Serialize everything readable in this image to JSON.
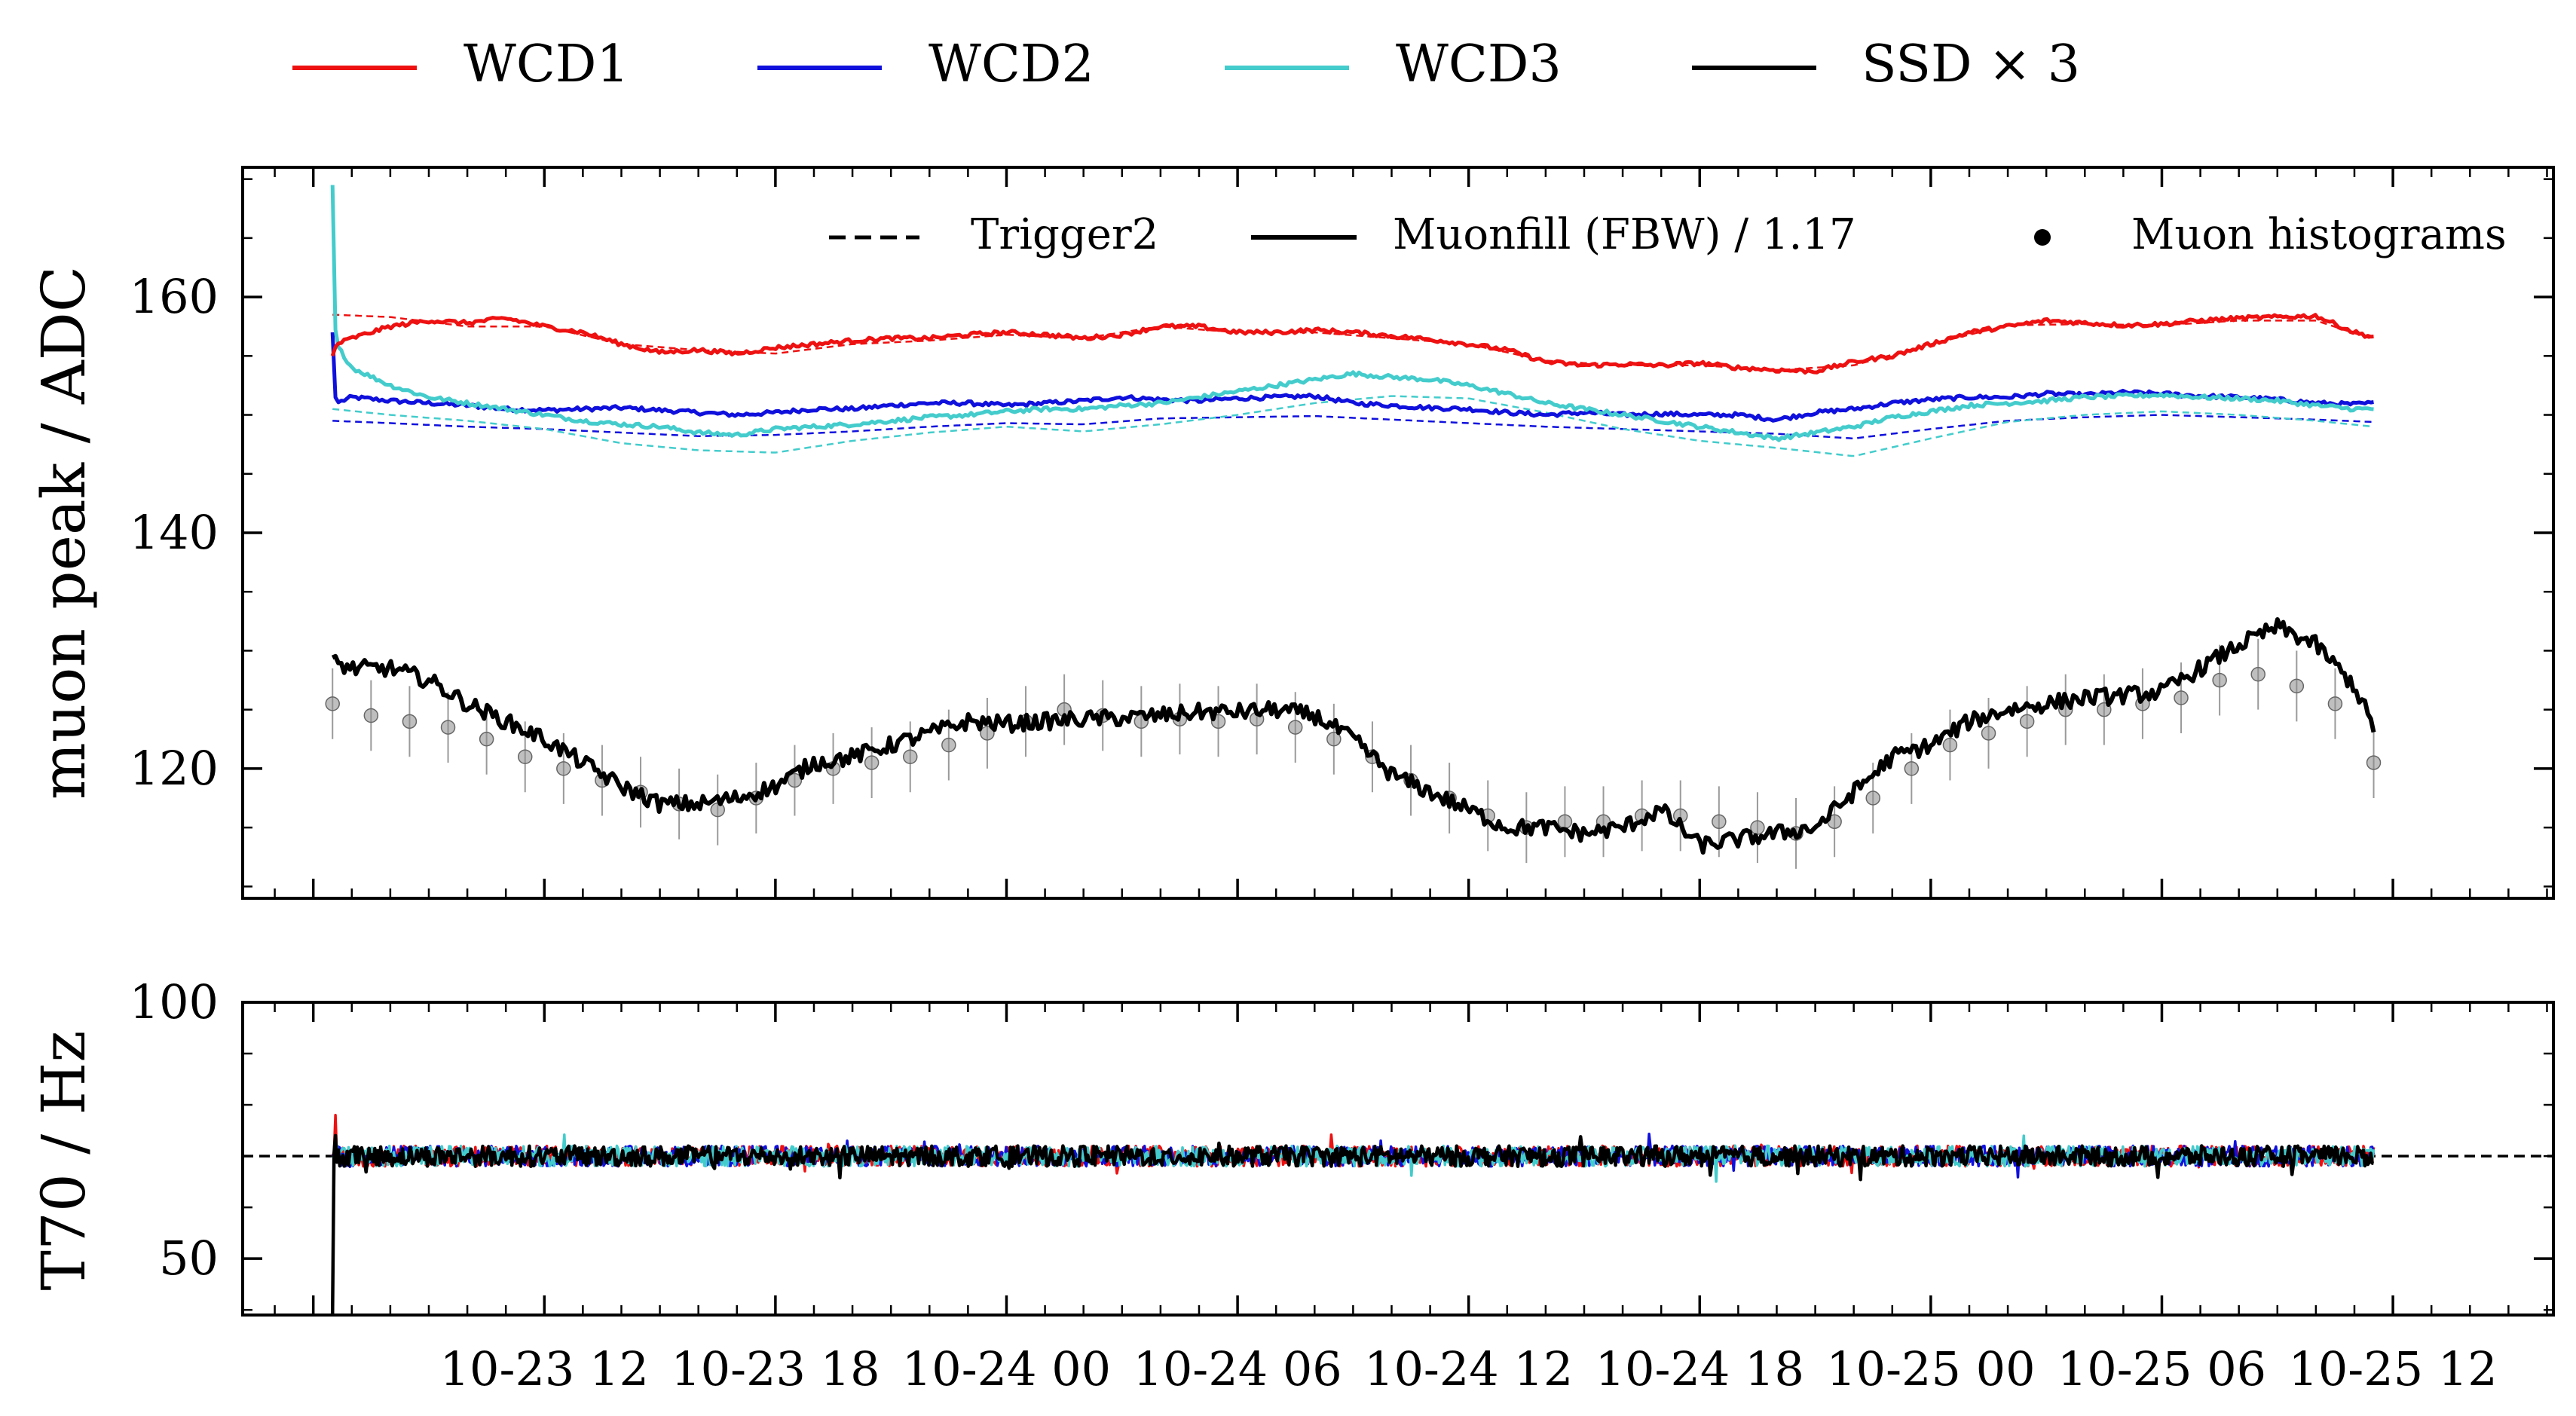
{
  "chart_data": [
    {
      "type": "line",
      "panel": "top",
      "ylabel": "muon peak / ADC",
      "ylim": [
        109,
        171
      ],
      "yticks": [
        120,
        140,
        160
      ],
      "xlim": [
        "2023-10-23T04:10",
        "2023-10-25T16:10"
      ],
      "xtick_labels": [
        "10-23 12",
        "10-23 18",
        "10-24 00",
        "10-24 06",
        "10-24 12",
        "10-24 18",
        "10-25 00",
        "10-25 06",
        "10-25 12"
      ],
      "xtick_times_hours": [
        12,
        18,
        24,
        30,
        36,
        42,
        48,
        54,
        60
      ],
      "x_range_hours": [
        6.5,
        59.5
      ],
      "legend_top": [
        {
          "name": "WCD1",
          "color": "#ee1111"
        },
        {
          "name": "WCD2",
          "color": "#1010dd"
        },
        {
          "name": "WCD3",
          "color": "#44cccc"
        },
        {
          "name": "SSD × 3",
          "color": "#000000"
        }
      ],
      "legend_inner": [
        {
          "name": "Trigger2",
          "style": "dashed"
        },
        {
          "name": "Muonfill (FBW) / 1.17",
          "style": "solid"
        },
        {
          "name": "Muon histograms",
          "style": "marker"
        }
      ],
      "series": [
        {
          "name": "WCD1",
          "style": "solid",
          "color": "#ee1111",
          "x": [
            6.5,
            6.6,
            7,
            8,
            9,
            10,
            11,
            12,
            13,
            14,
            15,
            16,
            17,
            18,
            19,
            20,
            21,
            22,
            23,
            24,
            25,
            26,
            27,
            28,
            29,
            30,
            31,
            32,
            33,
            34,
            35,
            36,
            37,
            38,
            39,
            40,
            41,
            42,
            43,
            44,
            45,
            46,
            47,
            48,
            49,
            50,
            51,
            52,
            53,
            54,
            55,
            56,
            57,
            58,
            59,
            59.5
          ],
          "y": [
            155,
            156,
            156.5,
            157.5,
            158,
            157.8,
            158.2,
            157.5,
            157,
            156,
            155.3,
            155.5,
            155.2,
            155.7,
            156,
            156.3,
            156.5,
            156.5,
            156.8,
            157,
            156.8,
            156.5,
            156.8,
            157.5,
            157.5,
            157,
            157,
            157.2,
            157,
            156.7,
            156.4,
            156,
            155.5,
            154.5,
            154.2,
            154.3,
            154.2,
            154.4,
            154,
            153.8,
            153.7,
            154.5,
            155,
            156,
            157,
            157.5,
            158,
            157.8,
            157.6,
            157.7,
            158,
            158.2,
            158.3,
            158.4,
            157,
            156.6
          ]
        },
        {
          "name": "WCD2",
          "style": "solid",
          "color": "#1010dd",
          "x": [
            6.5,
            6.55,
            6.6,
            7,
            8,
            9,
            10,
            11,
            12,
            13,
            14,
            15,
            16,
            17,
            18,
            19,
            20,
            21,
            22,
            23,
            24,
            25,
            26,
            27,
            28,
            29,
            30,
            31,
            32,
            33,
            34,
            35,
            36,
            37,
            38,
            39,
            40,
            41,
            42,
            43,
            44,
            45,
            46,
            47,
            48,
            49,
            50,
            51,
            52,
            53,
            54,
            55,
            56,
            57,
            58,
            59,
            59.5
          ],
          "y": [
            157,
            152,
            151,
            151.5,
            151.2,
            151,
            150.8,
            150.5,
            150.4,
            150.5,
            150.6,
            150.4,
            150.2,
            150,
            150.2,
            150.5,
            150.5,
            150.8,
            151,
            151,
            150.8,
            151,
            151.2,
            151.5,
            151.3,
            151.2,
            151.4,
            151.5,
            151.6,
            151,
            150.8,
            150.6,
            150.5,
            150.2,
            150,
            150.2,
            150,
            150.1,
            150,
            150,
            149.6,
            150.2,
            150.5,
            151,
            151.3,
            151.5,
            151.5,
            151.8,
            151.7,
            151.9,
            151.8,
            151.6,
            151.5,
            151.3,
            151,
            150.9,
            151
          ]
        },
        {
          "name": "WCD3",
          "style": "solid",
          "color": "#44cccc",
          "x": [
            6.5,
            6.52,
            6.6,
            7,
            8,
            9,
            10,
            11,
            12,
            13,
            14,
            15,
            16,
            17,
            18,
            19,
            20,
            21,
            22,
            23,
            24,
            25,
            26,
            27,
            28,
            29,
            30,
            31,
            32,
            33,
            34,
            35,
            36,
            37,
            38,
            39,
            40,
            41,
            42,
            43,
            44,
            45,
            46,
            47,
            48,
            49,
            50,
            51,
            52,
            53,
            54,
            55,
            56,
            57,
            58,
            59,
            59.5
          ],
          "y": [
            169.5,
            160,
            156,
            154,
            152.5,
            151.5,
            151,
            150.5,
            150,
            149.5,
            149.2,
            149,
            148.5,
            148.3,
            148.8,
            149,
            149.2,
            149.5,
            149.8,
            150,
            150.3,
            150.5,
            150.5,
            150.8,
            151,
            151.5,
            152,
            152.5,
            153,
            153.5,
            153.2,
            153,
            152.5,
            151.8,
            151,
            150.5,
            150,
            149.5,
            149,
            148.5,
            148,
            148.5,
            149,
            149.8,
            150.3,
            150.8,
            151,
            151.2,
            151.5,
            151.6,
            151.7,
            151.5,
            151.4,
            151.2,
            150.8,
            150.5,
            150.5
          ]
        },
        {
          "name": "WCD1 Trigger2",
          "style": "dashed",
          "color": "#ee1111",
          "x": [
            6.5,
            8,
            10,
            12,
            14,
            16,
            18,
            20,
            22,
            24,
            26,
            28,
            30,
            32,
            34,
            36,
            38,
            40,
            42,
            44,
            46,
            48,
            50,
            52,
            54,
            56,
            58,
            59.5
          ],
          "y": [
            158.5,
            158.3,
            157.5,
            157.5,
            156,
            155.5,
            155.2,
            156,
            156.3,
            156.8,
            156.5,
            157.5,
            157,
            157,
            156.5,
            156,
            154.6,
            154.2,
            154.2,
            153.8,
            154.2,
            156,
            157.6,
            157.7,
            157.6,
            158,
            158,
            156.4
          ]
        },
        {
          "name": "WCD2 Trigger2",
          "style": "dashed",
          "color": "#1010dd",
          "x": [
            6.5,
            8,
            10,
            12,
            14,
            16,
            18,
            20,
            22,
            24,
            26,
            28,
            30,
            32,
            34,
            36,
            38,
            40,
            42,
            44,
            46,
            48,
            50,
            52,
            54,
            56,
            58,
            59.5
          ],
          "y": [
            149.5,
            149.3,
            149,
            148.8,
            148.5,
            148.2,
            148.3,
            148.6,
            149,
            149.3,
            149.2,
            149.7,
            149.8,
            149.9,
            149.6,
            149.3,
            149,
            148.8,
            148.6,
            148.4,
            148,
            148.8,
            149.5,
            149.8,
            150,
            149.8,
            149.6,
            149.4
          ]
        },
        {
          "name": "WCD3 Trigger2",
          "style": "dashed",
          "color": "#44cccc",
          "x": [
            6.5,
            8,
            10,
            12,
            14,
            16,
            18,
            20,
            22,
            24,
            26,
            28,
            30,
            32,
            34,
            36,
            38,
            40,
            42,
            44,
            46,
            48,
            50,
            52,
            54,
            56,
            58,
            59.5
          ],
          "y": [
            150.5,
            150,
            149.5,
            148.8,
            147.6,
            147,
            146.8,
            147.8,
            148.5,
            149,
            148.6,
            149.2,
            150,
            151,
            151.6,
            151.4,
            150.2,
            148.8,
            147.8,
            147.2,
            146.5,
            148,
            149.4,
            150,
            150.3,
            150,
            149.5,
            149
          ]
        },
        {
          "name": "SSD × 3",
          "style": "solid",
          "color": "#000000",
          "x": [
            6.5,
            7,
            8,
            9,
            10,
            11,
            12,
            13,
            14,
            15,
            16,
            17,
            18,
            19,
            20,
            21,
            22,
            23,
            24,
            25,
            26,
            27,
            28,
            29,
            30,
            31,
            32,
            33,
            34,
            35,
            36,
            37,
            38,
            39,
            40,
            41,
            42,
            43,
            44,
            45,
            46,
            47,
            48,
            49,
            50,
            51,
            52,
            53,
            54,
            55,
            56,
            57,
            58,
            59,
            59.5
          ],
          "y": [
            129,
            128.5,
            128.5,
            127.5,
            125.5,
            124,
            122.5,
            120.5,
            118.5,
            117,
            117,
            117.5,
            118.5,
            120.5,
            121,
            122,
            123,
            124,
            123.8,
            124,
            124.2,
            124.3,
            124.5,
            124.8,
            124.8,
            125,
            124.5,
            122.5,
            119.5,
            118,
            116.5,
            115,
            115,
            114.5,
            115,
            116.5,
            113.5,
            114,
            114.5,
            115,
            118,
            121,
            122,
            124,
            125,
            125.5,
            126,
            126.2,
            126.5,
            128.5,
            130.5,
            132,
            130.5,
            127,
            123.5
          ]
        },
        {
          "name": "Muon histograms",
          "style": "marker",
          "color": "#808080",
          "x": [
            6.5,
            7.5,
            8.5,
            9.5,
            10.5,
            11.5,
            12.5,
            13.5,
            14.5,
            15.5,
            16.5,
            17.5,
            18.5,
            19.5,
            20.5,
            21.5,
            22.5,
            23.5,
            24.5,
            25.5,
            26.5,
            27.5,
            28.5,
            29.5,
            30.5,
            31.5,
            32.5,
            33.5,
            34.5,
            35.5,
            36.5,
            37.5,
            38.5,
            39.5,
            40.5,
            41.5,
            42.5,
            43.5,
            44.5,
            45.5,
            46.5,
            47.5,
            48.5,
            49.5,
            50.5,
            51.5,
            52.5,
            53.5,
            54.5,
            55.5,
            56.5,
            57.5,
            58.5,
            59.5
          ],
          "y": [
            125.5,
            124.5,
            124,
            123.5,
            122.5,
            121,
            120,
            119,
            118,
            117,
            116.5,
            117.5,
            119,
            120,
            120.5,
            121,
            122,
            123,
            124,
            125,
            124.5,
            124,
            124.2,
            124,
            124.2,
            123.5,
            122.5,
            121,
            119,
            117.5,
            116,
            115,
            115.5,
            115.5,
            116,
            116,
            115.5,
            115,
            114.5,
            115.5,
            117.5,
            120,
            122,
            123,
            124,
            125,
            125,
            125.5,
            126,
            127.5,
            128,
            127,
            125.5,
            120.5
          ],
          "yerr": 3
        }
      ]
    },
    {
      "type": "line",
      "panel": "bottom",
      "ylabel": "T70 / Hz",
      "ylim": [
        39,
        100
      ],
      "yticks": [
        50,
        100
      ],
      "reference_line": {
        "y": 70,
        "style": "dashed",
        "color": "#000000"
      },
      "series": [
        {
          "name": "WCD1",
          "color": "#ee1111",
          "level": 70,
          "startup_peak": 78
        },
        {
          "name": "WCD2",
          "color": "#1010dd",
          "level": 70,
          "startup_peak": 73
        },
        {
          "name": "WCD3",
          "color": "#44cccc",
          "level": 70,
          "startup_peak": 73
        },
        {
          "name": "SSD × 3",
          "color": "#000000",
          "level": 70,
          "startup_min": 39,
          "startup_peak": 74
        }
      ]
    }
  ]
}
